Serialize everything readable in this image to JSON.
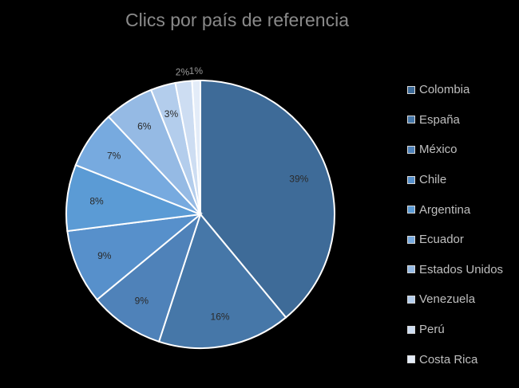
{
  "chart_data": {
    "type": "pie",
    "title": "Clics por país de referencia",
    "categories": [
      "Colombia",
      "España",
      "México",
      "Chile",
      "Argentina",
      "Ecuador",
      "Estados Unidos",
      "Venezuela",
      "Perú",
      "Costa Rica"
    ],
    "values": [
      39,
      16,
      9,
      9,
      8,
      7,
      6,
      3,
      2,
      1
    ],
    "labels": [
      "39%",
      "16%",
      "9%",
      "9%",
      "8%",
      "7%",
      "6%",
      "3%",
      "2%",
      "1%"
    ],
    "colors": [
      "#3e6b98",
      "#4677a8",
      "#4f82b9",
      "#5790cb",
      "#5b9bd5",
      "#77aadf",
      "#95bae4",
      "#b3cdec",
      "#cdddf2",
      "#e3ecf8"
    ],
    "legend_position": "right"
  }
}
